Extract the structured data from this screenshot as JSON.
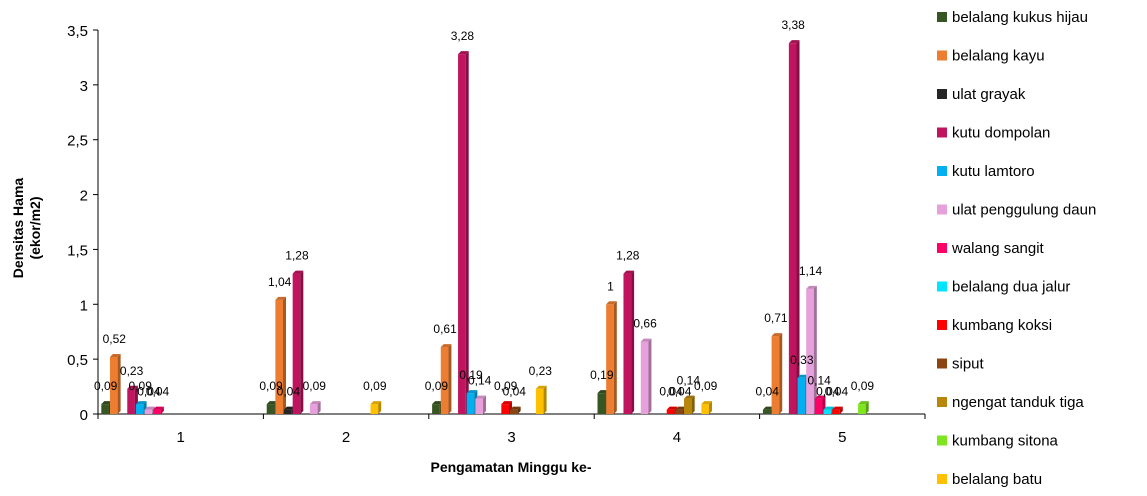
{
  "chart_data": {
    "type": "bar",
    "title": "",
    "xlabel": "Pengamatan Minggu ke-",
    "ylabel_lines": [
      "Densitas Hama",
      "(ekor/m2)"
    ],
    "ylim": [
      0,
      3.5
    ],
    "yticks": [
      "0",
      "0,5",
      "1",
      "1,5",
      "2",
      "2,5",
      "3",
      "3,5"
    ],
    "categories": [
      "1",
      "2",
      "3",
      "4",
      "5"
    ],
    "legend_position": "right",
    "series": [
      {
        "name": "belalang kukus hijau",
        "color": "#375623",
        "values": [
          0.09,
          0.09,
          0.09,
          0.19,
          0.04
        ],
        "labels": [
          "0,09",
          "0,09",
          "0,09",
          "0,19",
          "0,04"
        ]
      },
      {
        "name": "belalang kayu",
        "color": "#ED7D31",
        "values": [
          0.52,
          1.04,
          0.61,
          1.0,
          0.71
        ],
        "labels": [
          "0,52",
          "1,04",
          "0,61",
          "1",
          "0,71"
        ]
      },
      {
        "name": "ulat grayak",
        "color": "#262626",
        "values": [
          0,
          0.04,
          0,
          0,
          0
        ],
        "labels": [
          null,
          "0,04",
          null,
          null,
          null
        ]
      },
      {
        "name": "kutu dompolan",
        "color": "#C0145F",
        "values": [
          0.23,
          1.28,
          3.28,
          1.28,
          3.38
        ],
        "labels": [
          "0,23",
          "1,28",
          "3,28",
          "1,28",
          "3,38"
        ]
      },
      {
        "name": "kutu lamtoro",
        "color": "#00B0F0",
        "values": [
          0.09,
          0,
          0.19,
          0,
          0.33
        ],
        "labels": [
          "0,09",
          null,
          "0,19",
          null,
          "0,33"
        ]
      },
      {
        "name": "ulat penggulung daun",
        "color": "#E6A0DC",
        "values": [
          0.04,
          0.09,
          0.14,
          0.66,
          1.14
        ],
        "labels": [
          "0,04",
          "0,09",
          "0,14",
          "0,66",
          "1,14"
        ]
      },
      {
        "name": "walang sangit",
        "color": "#FF0066",
        "values": [
          0.04,
          0,
          0,
          0,
          0.14
        ],
        "labels": [
          "0,04",
          null,
          null,
          null,
          "0,14"
        ]
      },
      {
        "name": "belalang dua jalur",
        "color": "#00E5FF",
        "values": [
          0,
          0,
          0,
          0,
          0.04
        ],
        "labels": [
          null,
          null,
          null,
          null,
          "0,04"
        ]
      },
      {
        "name": "kumbang koksi",
        "color": "#FF0000",
        "values": [
          0,
          0,
          0.09,
          0.04,
          0.04
        ],
        "labels": [
          null,
          null,
          "0,09",
          "0,04",
          "0,04"
        ]
      },
      {
        "name": "siput",
        "color": "#8B4513",
        "values": [
          0,
          0,
          0.04,
          0.04,
          0
        ],
        "labels": [
          null,
          null,
          "0,04",
          "0,04",
          null
        ]
      },
      {
        "name": "ngengat tanduk tiga",
        "color": "#B8860B",
        "values": [
          0,
          0,
          0,
          0.14,
          0
        ],
        "labels": [
          null,
          null,
          null,
          "0,14",
          null
        ]
      },
      {
        "name": "kumbang sitona",
        "color": "#7FE51F",
        "values": [
          0,
          0,
          0,
          0,
          0.09
        ],
        "labels": [
          null,
          null,
          null,
          null,
          "0,09"
        ]
      },
      {
        "name": "belalang batu",
        "color": "#FFC000",
        "values": [
          0,
          0.09,
          0.23,
          0.09,
          0
        ],
        "labels": [
          null,
          "0,09",
          "0,23",
          "0,09",
          null
        ]
      }
    ]
  }
}
